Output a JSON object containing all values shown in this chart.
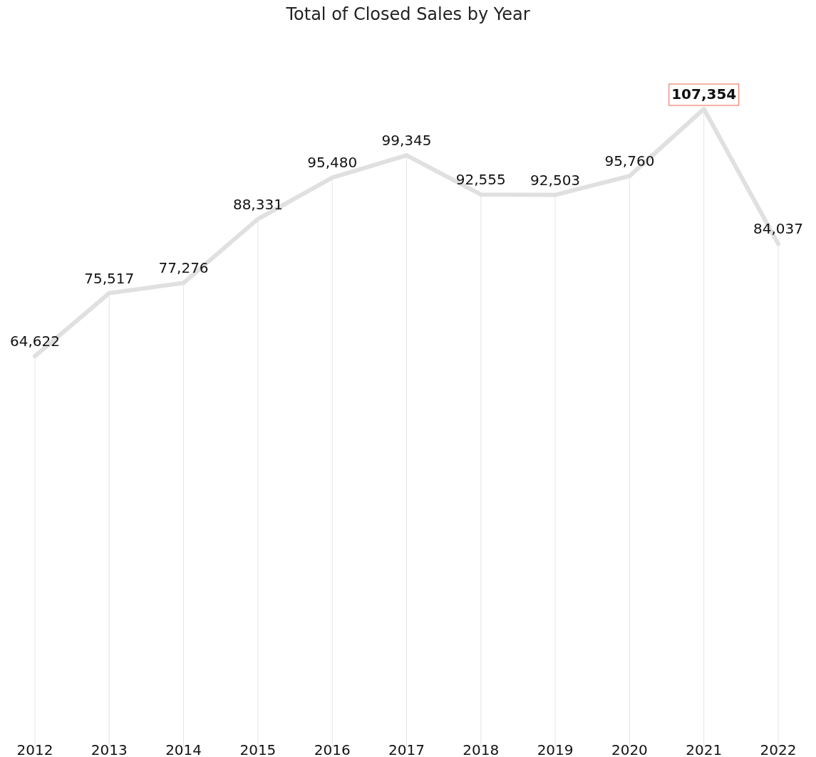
{
  "chart_data": {
    "type": "line",
    "title": "Total of Closed Sales by Year",
    "categories": [
      "2012",
      "2013",
      "2014",
      "2015",
      "2016",
      "2017",
      "2018",
      "2019",
      "2020",
      "2021",
      "2022"
    ],
    "series": [
      {
        "color": "#e0e0e0",
        "values": [
          64622,
          75517,
          77276,
          88331,
          95480,
          99345,
          92555,
          92503,
          95760,
          107354,
          84037
        ],
        "value_labels": [
          "64,622",
          "75,517",
          "77,276",
          "88,331",
          "95,480",
          "99,345",
          "92,555",
          "92,503",
          "95,760",
          "107,354",
          "84,037"
        ]
      }
    ],
    "grid": "x",
    "marker": "none",
    "line_style": "solid"
  }
}
